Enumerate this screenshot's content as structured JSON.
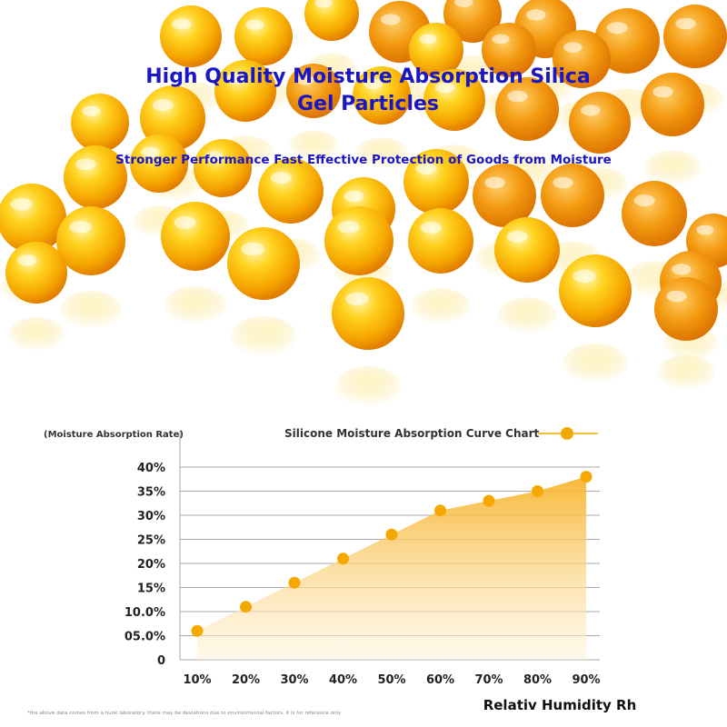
{
  "hero": {
    "title": "High Quality Moisture Absorption Silica Gel Particles",
    "subtitle": "Stronger Performance Fast Effective Protection of Goods from Moisture"
  },
  "colors": {
    "title_text": "#1a16c4",
    "marker": "#f5a800",
    "area_fill": "#f9c55a",
    "bead_light": "#ffe066",
    "bead_dark": "#f08a00"
  },
  "chart_data": {
    "type": "area",
    "title": "Silicone Moisture Absorption Curve Chart",
    "ylabel": "(Moisture Absorption Rate)",
    "xlabel": "Relativ Humidity Rh",
    "x_ticks": [
      "10%",
      "20%",
      "30%",
      "40%",
      "50%",
      "60%",
      "70%",
      "80%",
      "90%"
    ],
    "y_ticks": [
      "0",
      "05.0%",
      "10.0%",
      "15%",
      "20%",
      "25%",
      "30%",
      "35%",
      "40%"
    ],
    "ylim": [
      0,
      40
    ],
    "series": [
      {
        "name": "Silicone Moisture Absorption Curve Chart",
        "x": [
          10,
          20,
          30,
          40,
          50,
          60,
          70,
          80,
          90
        ],
        "y": [
          6,
          11,
          16,
          21,
          26,
          31,
          33,
          35,
          38
        ]
      }
    ],
    "legend_position": "top-right",
    "grid": true,
    "footnote": "*the above data comes from a hunk laboratory. there may be deviations due to environmental factors. it is for reference only"
  }
}
